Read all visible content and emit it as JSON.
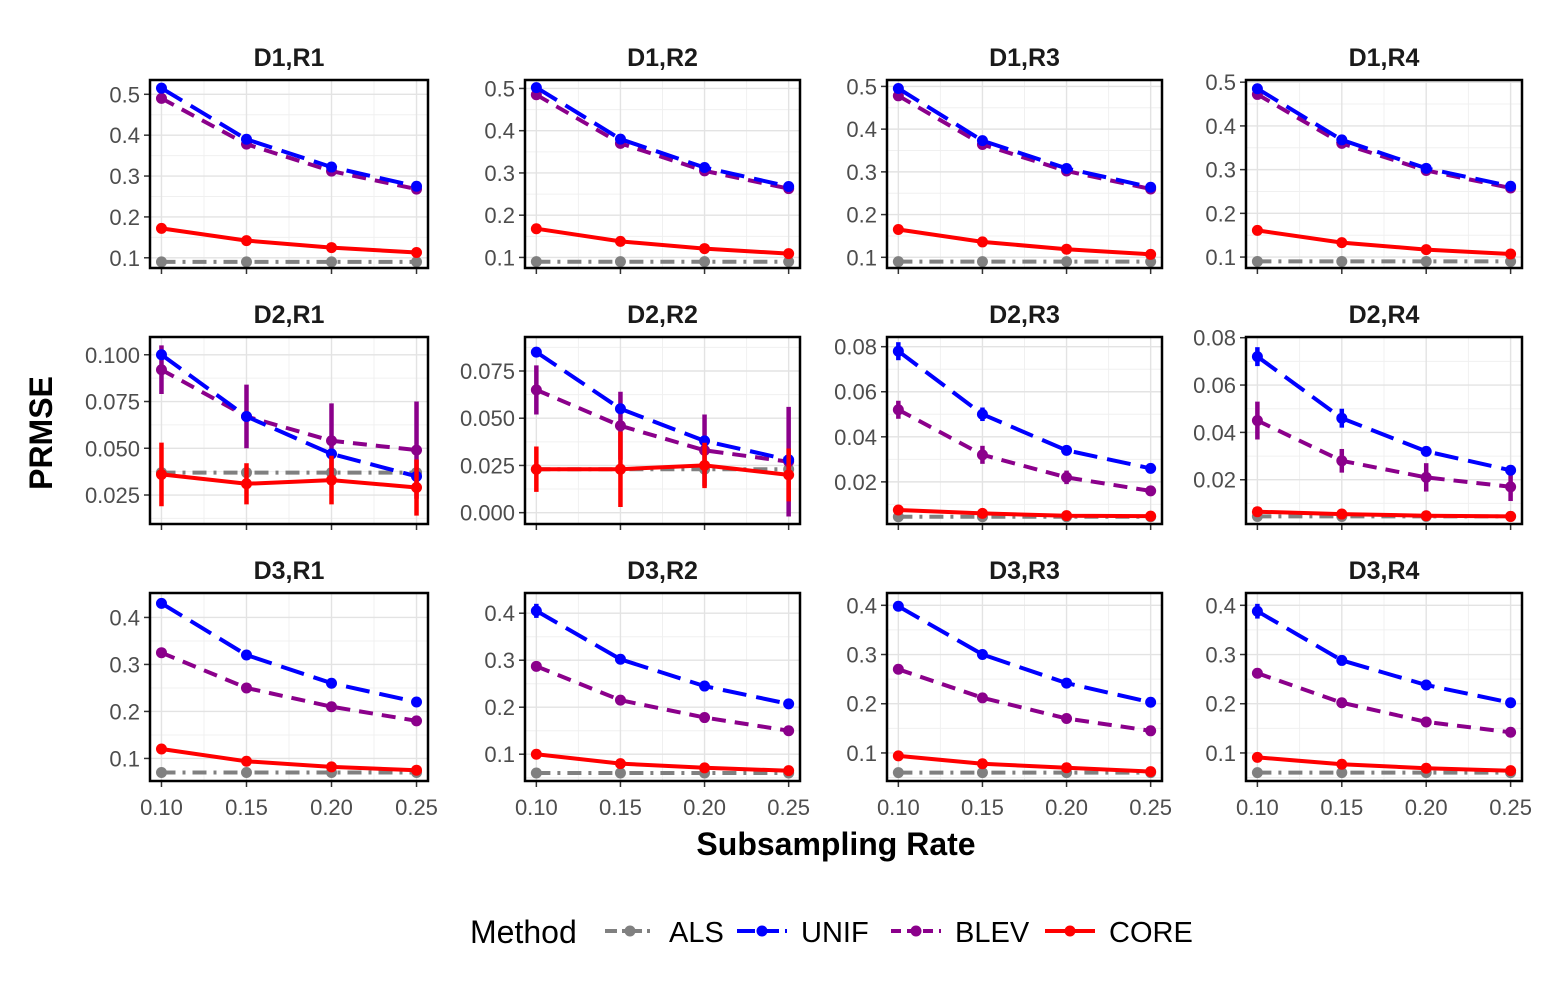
{
  "chart_data": {
    "type": "line",
    "ylabel": "PRMSE",
    "xlabel": "Subsampling Rate",
    "x": [
      0.1,
      0.15,
      0.2,
      0.25
    ],
    "x_tick_labels": [
      "0.10",
      "0.15",
      "0.20",
      "0.25"
    ],
    "grid": true,
    "legend": {
      "title": "Method",
      "position": "bottom",
      "entries": [
        "ALS",
        "UNIF",
        "BLEV",
        "CORE"
      ]
    },
    "series_styles": {
      "ALS": {
        "color": "#808080",
        "dash": "dotdash"
      },
      "UNIF": {
        "color": "#0000ff",
        "dash": "longdash"
      },
      "BLEV": {
        "color": "#8b008b",
        "dash": "dashed"
      },
      "CORE": {
        "color": "#ff0000",
        "dash": "solid"
      }
    },
    "panels": [
      {
        "title": "D1,R1",
        "ylim": [
          0.075,
          0.535
        ],
        "yticks": [
          0.1,
          0.2,
          0.3,
          0.4,
          0.5
        ],
        "ytick_labels": [
          "0.1",
          "0.2",
          "0.3",
          "0.4",
          "0.5"
        ],
        "series": [
          {
            "name": "ALS",
            "values": [
              0.09,
              0.09,
              0.09,
              0.09
            ]
          },
          {
            "name": "UNIF",
            "values": [
              0.515,
              0.39,
              0.322,
              0.275
            ]
          },
          {
            "name": "BLEV",
            "values": [
              0.49,
              0.378,
              0.312,
              0.268
            ]
          },
          {
            "name": "CORE",
            "values": [
              0.172,
              0.142,
              0.125,
              0.113
            ]
          }
        ]
      },
      {
        "title": "D1,R2",
        "ylim": [
          0.075,
          0.52
        ],
        "yticks": [
          0.1,
          0.2,
          0.3,
          0.4,
          0.5
        ],
        "ytick_labels": [
          "0.1",
          "0.2",
          "0.3",
          "0.4",
          "0.5"
        ],
        "series": [
          {
            "name": "ALS",
            "values": [
              0.09,
              0.09,
              0.09,
              0.09
            ]
          },
          {
            "name": "UNIF",
            "values": [
              0.502,
              0.38,
              0.313,
              0.268
            ]
          },
          {
            "name": "BLEV",
            "values": [
              0.485,
              0.37,
              0.305,
              0.263
            ]
          },
          {
            "name": "CORE",
            "values": [
              0.168,
              0.138,
              0.121,
              0.109
            ]
          }
        ]
      },
      {
        "title": "D1,R3",
        "ylim": [
          0.075,
          0.515
        ],
        "yticks": [
          0.1,
          0.2,
          0.3,
          0.4,
          0.5
        ],
        "ytick_labels": [
          "0.1",
          "0.2",
          "0.3",
          "0.4",
          "0.5"
        ],
        "series": [
          {
            "name": "ALS",
            "values": [
              0.09,
              0.09,
              0.09,
              0.09
            ]
          },
          {
            "name": "UNIF",
            "values": [
              0.495,
              0.373,
              0.308,
              0.264
            ]
          },
          {
            "name": "BLEV",
            "values": [
              0.478,
              0.364,
              0.302,
              0.26
            ]
          },
          {
            "name": "CORE",
            "values": [
              0.165,
              0.136,
              0.119,
              0.107
            ]
          }
        ]
      },
      {
        "title": "D1,R4",
        "ylim": [
          0.075,
          0.505
        ],
        "yticks": [
          0.1,
          0.2,
          0.3,
          0.4,
          0.5
        ],
        "ytick_labels": [
          "0.1",
          "0.2",
          "0.3",
          "0.4",
          "0.5"
        ],
        "series": [
          {
            "name": "ALS",
            "values": [
              0.09,
              0.09,
              0.09,
              0.09
            ]
          },
          {
            "name": "UNIF",
            "values": [
              0.485,
              0.368,
              0.303,
              0.262
            ]
          },
          {
            "name": "BLEV",
            "values": [
              0.472,
              0.36,
              0.298,
              0.258
            ]
          },
          {
            "name": "CORE",
            "values": [
              0.161,
              0.133,
              0.117,
              0.107
            ]
          }
        ]
      },
      {
        "title": "D2,R1",
        "ylim": [
          0.0095,
          0.1095
        ],
        "yticks": [
          0.025,
          0.05,
          0.075,
          0.1
        ],
        "ytick_labels": [
          "0.025",
          "0.050",
          "0.075",
          "0.100"
        ],
        "series": [
          {
            "name": "ALS",
            "values": [
              0.037,
              0.037,
              0.037,
              0.037
            ]
          },
          {
            "name": "UNIF",
            "values": [
              0.1,
              0.067,
              0.047,
              0.035
            ]
          },
          {
            "name": "BLEV",
            "values": [
              0.092,
              0.067,
              0.054,
              0.049
            ],
            "err": [
              0.013,
              0.017,
              0.02,
              0.026
            ]
          },
          {
            "name": "CORE",
            "values": [
              0.036,
              0.031,
              0.033,
              0.029
            ],
            "err": [
              0.017,
              0.011,
              0.013,
              0.015
            ]
          }
        ]
      },
      {
        "title": "D2,R2",
        "ylim": [
          -0.006,
          0.093
        ],
        "yticks": [
          0,
          0.025,
          0.05,
          0.075
        ],
        "ytick_labels": [
          "0.000",
          "0.025",
          "0.050",
          "0.075"
        ],
        "series": [
          {
            "name": "ALS",
            "values": [
              0.023,
              0.023,
              0.023,
              0.023
            ]
          },
          {
            "name": "UNIF",
            "values": [
              0.085,
              0.055,
              0.038,
              0.028
            ]
          },
          {
            "name": "BLEV",
            "values": [
              0.065,
              0.046,
              0.033,
              0.027
            ],
            "err": [
              0.013,
              0.018,
              0.019,
              0.029
            ]
          },
          {
            "name": "CORE",
            "values": [
              0.023,
              0.023,
              0.025,
              0.02
            ],
            "err": [
              0.012,
              0.02,
              0.012,
              0.014
            ]
          }
        ]
      },
      {
        "title": "D2,R3",
        "ylim": [
          0.0013,
          0.0843
        ],
        "yticks": [
          0.02,
          0.04,
          0.06,
          0.08
        ],
        "ytick_labels": [
          "0.02",
          "0.04",
          "0.06",
          "0.08"
        ],
        "series": [
          {
            "name": "ALS",
            "values": [
              0.0045,
              0.0045,
              0.0045,
              0.0045
            ]
          },
          {
            "name": "UNIF",
            "values": [
              0.078,
              0.05,
              0.034,
              0.026
            ],
            "err": [
              0.004,
              0.003,
              0.002,
              0.001
            ]
          },
          {
            "name": "BLEV",
            "values": [
              0.052,
              0.032,
              0.022,
              0.016
            ],
            "err": [
              0.004,
              0.004,
              0.003,
              0.002
            ]
          },
          {
            "name": "CORE",
            "values": [
              0.0075,
              0.006,
              0.005,
              0.0048
            ]
          }
        ]
      },
      {
        "title": "D2,R4",
        "ylim": [
          0.0013,
          0.0803
        ],
        "yticks": [
          0.02,
          0.04,
          0.06,
          0.08
        ],
        "ytick_labels": [
          "0.02",
          "0.04",
          "0.06",
          "0.08"
        ],
        "series": [
          {
            "name": "ALS",
            "values": [
              0.0045,
              0.0045,
              0.0045,
              0.0045
            ]
          },
          {
            "name": "UNIF",
            "values": [
              0.072,
              0.046,
              0.032,
              0.024
            ],
            "err": [
              0.004,
              0.004,
              0.002,
              0.002
            ]
          },
          {
            "name": "BLEV",
            "values": [
              0.045,
              0.028,
              0.021,
              0.017
            ],
            "err": [
              0.008,
              0.005,
              0.006,
              0.006
            ]
          },
          {
            "name": "CORE",
            "values": [
              0.0065,
              0.0055,
              0.0048,
              0.0045
            ]
          }
        ]
      },
      {
        "title": "D3,R1",
        "ylim": [
          0.052,
          0.452
        ],
        "yticks": [
          0.1,
          0.2,
          0.3,
          0.4
        ],
        "ytick_labels": [
          "0.1",
          "0.2",
          "0.3",
          "0.4"
        ],
        "series": [
          {
            "name": "ALS",
            "values": [
              0.07,
              0.07,
              0.07,
              0.07
            ]
          },
          {
            "name": "UNIF",
            "values": [
              0.43,
              0.32,
              0.26,
              0.22
            ]
          },
          {
            "name": "BLEV",
            "values": [
              0.325,
              0.25,
              0.21,
              0.18
            ]
          },
          {
            "name": "CORE",
            "values": [
              0.12,
              0.094,
              0.082,
              0.075
            ]
          }
        ]
      },
      {
        "title": "D3,R2",
        "ylim": [
          0.043,
          0.443
        ],
        "yticks": [
          0.1,
          0.2,
          0.3,
          0.4
        ],
        "ytick_labels": [
          "0.1",
          "0.2",
          "0.3",
          "0.4"
        ],
        "series": [
          {
            "name": "ALS",
            "values": [
              0.06,
              0.06,
              0.06,
              0.06
            ]
          },
          {
            "name": "UNIF",
            "values": [
              0.405,
              0.302,
              0.245,
              0.207
            ],
            "err": [
              0.015,
              0,
              0,
              0
            ]
          },
          {
            "name": "BLEV",
            "values": [
              0.287,
              0.215,
              0.178,
              0.15
            ]
          },
          {
            "name": "CORE",
            "values": [
              0.1,
              0.08,
              0.071,
              0.065
            ]
          }
        ]
      },
      {
        "title": "D3,R3",
        "ylim": [
          0.043,
          0.425
        ],
        "yticks": [
          0.1,
          0.2,
          0.3,
          0.4
        ],
        "ytick_labels": [
          "0.1",
          "0.2",
          "0.3",
          "0.4"
        ],
        "series": [
          {
            "name": "ALS",
            "values": [
              0.06,
              0.06,
              0.06,
              0.06
            ]
          },
          {
            "name": "UNIF",
            "values": [
              0.398,
              0.3,
              0.242,
              0.203
            ]
          },
          {
            "name": "BLEV",
            "values": [
              0.27,
              0.212,
              0.17,
              0.145
            ]
          },
          {
            "name": "CORE",
            "values": [
              0.094,
              0.078,
              0.07,
              0.062
            ]
          }
        ]
      },
      {
        "title": "D3,R4",
        "ylim": [
          0.043,
          0.425
        ],
        "yticks": [
          0.1,
          0.2,
          0.3,
          0.4
        ],
        "ytick_labels": [
          "0.1",
          "0.2",
          "0.3",
          "0.4"
        ],
        "series": [
          {
            "name": "ALS",
            "values": [
              0.06,
              0.06,
              0.06,
              0.06
            ]
          },
          {
            "name": "UNIF",
            "values": [
              0.388,
              0.288,
              0.238,
              0.202
            ],
            "err": [
              0.015,
              0,
              0,
              0
            ]
          },
          {
            "name": "BLEV",
            "values": [
              0.262,
              0.202,
              0.163,
              0.142
            ]
          },
          {
            "name": "CORE",
            "values": [
              0.091,
              0.077,
              0.069,
              0.064
            ]
          }
        ]
      }
    ]
  }
}
